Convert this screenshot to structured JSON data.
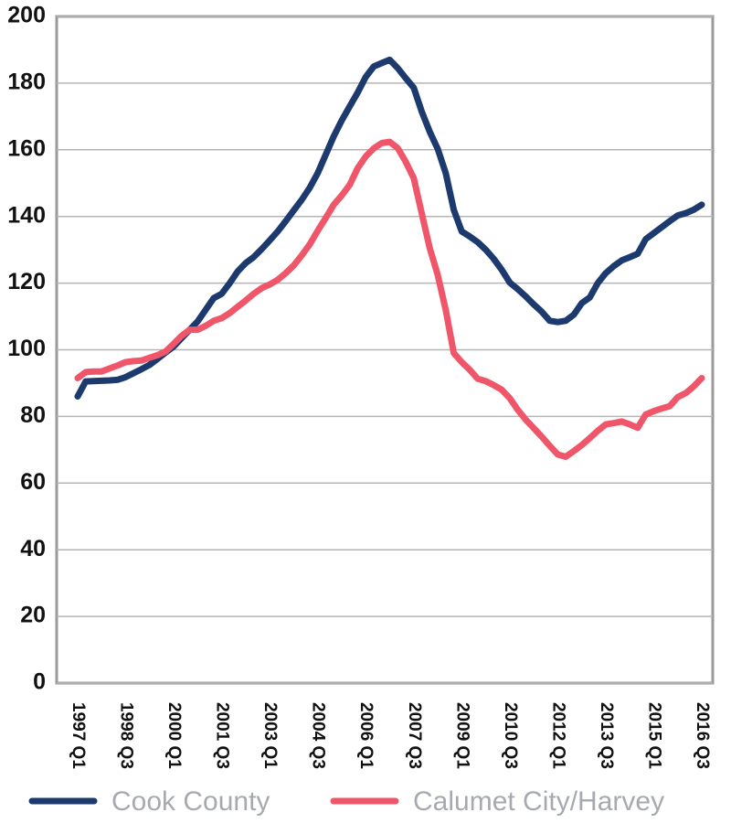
{
  "chart_data": {
    "type": "line",
    "categories": [
      "1997 Q1",
      null,
      null,
      null,
      null,
      null,
      "1998 Q3",
      null,
      null,
      null,
      null,
      null,
      "2000 Q1",
      null,
      null,
      null,
      null,
      null,
      "2001 Q3",
      null,
      null,
      null,
      null,
      null,
      "2003 Q1",
      null,
      null,
      null,
      null,
      null,
      "2004 Q3",
      null,
      null,
      null,
      null,
      null,
      "2006 Q1",
      null,
      null,
      null,
      null,
      null,
      "2007 Q3",
      null,
      null,
      null,
      null,
      null,
      "2009 Q1",
      null,
      null,
      null,
      null,
      null,
      "2010 Q3",
      null,
      null,
      null,
      null,
      null,
      "2012 Q1",
      null,
      null,
      null,
      null,
      null,
      "2013 Q3",
      null,
      null,
      null,
      null,
      null,
      "2015 Q1",
      null,
      null,
      null,
      null,
      null,
      "2016 Q3"
    ],
    "series": [
      {
        "name": "Cook County",
        "color": "#1c3a6e",
        "values": [
          86,
          90.5,
          90.6,
          90.7,
          90.8,
          91,
          91.8,
          93,
          94.2,
          95.5,
          97.3,
          99.2,
          101,
          103.5,
          106,
          108.5,
          112,
          115.5,
          116.8,
          120,
          123.5,
          126,
          127.8,
          130.2,
          132.8,
          135.5,
          138.6,
          141.8,
          145,
          148.6,
          153,
          158.5,
          164,
          168.8,
          173,
          177.2,
          181.8,
          185,
          186,
          187,
          184.5,
          181.5,
          178.6,
          171.5,
          165.4,
          160.3,
          153,
          142,
          135.5,
          134,
          132.3,
          130,
          127.3,
          124,
          120.2,
          118.2,
          116,
          113.6,
          111.4,
          108.7,
          108.3,
          108.7,
          110.5,
          114,
          115.7,
          120,
          123,
          125.1,
          126.8,
          127.8,
          128.8,
          133.2,
          135,
          136.8,
          138.6,
          140.3,
          141,
          142,
          143.5
        ]
      },
      {
        "name": "Calumet City/Harvey",
        "color": "#f0566a",
        "values": [
          91.5,
          93.3,
          93.5,
          93.5,
          94.4,
          95.3,
          96.3,
          96.6,
          96.8,
          97.6,
          98.4,
          99.5,
          101.8,
          104.2,
          106,
          106,
          107.2,
          108.7,
          109.5,
          111,
          112.9,
          114.8,
          116.8,
          118.5,
          119.6,
          121,
          123,
          125.3,
          128.3,
          131.6,
          135.7,
          139.5,
          143.5,
          146.3,
          149.5,
          154.5,
          158,
          160.4,
          162,
          162.4,
          160.5,
          156.4,
          151.5,
          141,
          130.5,
          122.5,
          112,
          99,
          96.3,
          94,
          91.3,
          90.6,
          89.4,
          88,
          85.5,
          82,
          79,
          76.5,
          73.9,
          71.2,
          68.6,
          67.9,
          69.6,
          71.4,
          73.5,
          75.7,
          77.6,
          78,
          78.5,
          77.6,
          76.6,
          80.6,
          81.6,
          82.4,
          83.1,
          85.8,
          87,
          89,
          91.5
        ]
      }
    ],
    "ylim": [
      0,
      200
    ],
    "yticks": [
      0,
      20,
      40,
      60,
      80,
      100,
      120,
      140,
      160,
      180,
      200
    ],
    "grid": true
  }
}
